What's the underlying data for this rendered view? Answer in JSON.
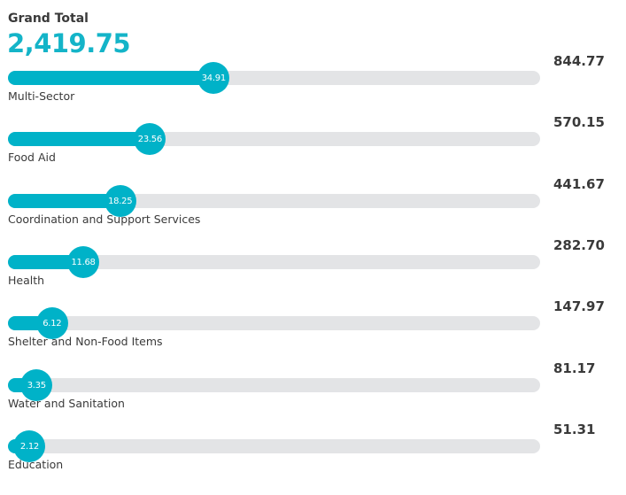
{
  "chart_data": {
    "type": "bar",
    "orientation": "horizontal",
    "title": "Grand Total",
    "total": "2,419.75",
    "categories": [
      "Multi-Sector",
      "Food Aid",
      "Coordination and Support Services",
      "Health",
      "Shelter and Non-Food Items",
      "Water and Sanitation",
      "Education"
    ],
    "percent_labels": [
      "34.91",
      "23.56",
      "18.25",
      "11.68",
      "6.12",
      "3.35",
      "2.12"
    ],
    "percents": [
      34.91,
      23.56,
      18.25,
      11.68,
      6.12,
      3.35,
      2.12
    ],
    "value_labels": [
      "844.77",
      "570.15",
      "441.67",
      "282.70",
      "147.97",
      "81.17",
      "51.31"
    ],
    "values": [
      844.77,
      570.15,
      441.67,
      282.7,
      147.97,
      81.17,
      51.31
    ],
    "xlim": [
      0,
      100
    ],
    "colors": {
      "fill": "#00b2c8",
      "track": "#e3e4e6",
      "total": "#14b4c8",
      "text": "#3a3a3a"
    }
  }
}
